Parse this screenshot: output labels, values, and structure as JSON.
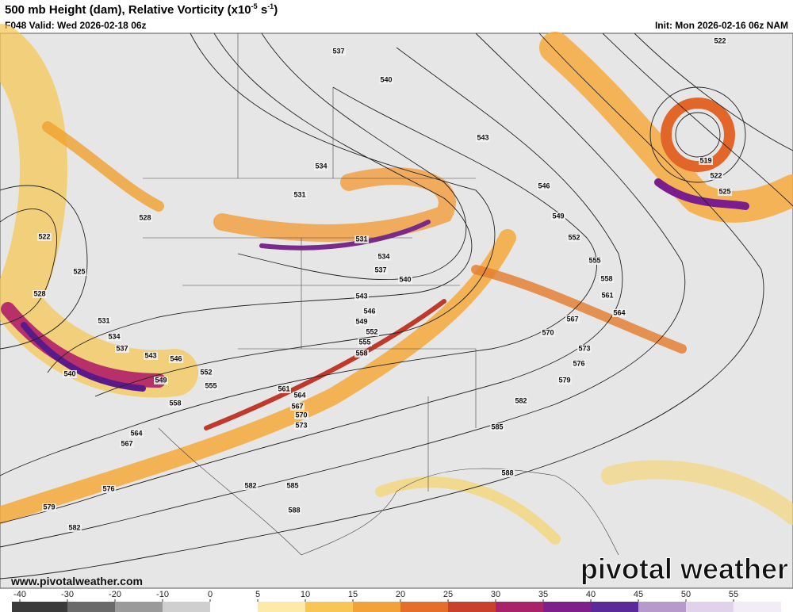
{
  "header": {
    "title": "500 mb Height (dam), Relative Vorticity (x10",
    "title_exponent": "-5",
    "title_unit": " s",
    "title_unit_exponent": "-1",
    "title_close": ")",
    "valid": "F048 Valid: Wed 2026-02-18 06z",
    "init": "Init: Mon 2026-02-16 06z NAM"
  },
  "map": {
    "contour_labels": [
      537,
      540,
      543,
      534,
      531,
      546,
      549,
      552,
      555,
      558,
      561,
      564,
      567,
      570,
      573,
      576,
      579,
      582,
      585,
      588,
      531,
      534,
      537,
      540,
      543,
      546,
      549,
      552,
      555,
      558,
      528,
      522,
      525,
      528,
      531,
      534,
      537,
      540,
      543,
      546,
      549,
      552,
      555,
      558,
      561,
      564,
      567,
      570,
      573,
      564,
      567,
      576,
      579,
      582,
      582,
      585,
      588,
      522,
      519,
      522,
      525
    ]
  },
  "footer": {
    "website": "www.pivotalweather.com",
    "watermark": "pivotal weather"
  },
  "colorbar": {
    "ticks": [
      -40,
      -30,
      -20,
      -10,
      0,
      5,
      10,
      15,
      20,
      25,
      30,
      35,
      40,
      45,
      50,
      55
    ]
  }
}
